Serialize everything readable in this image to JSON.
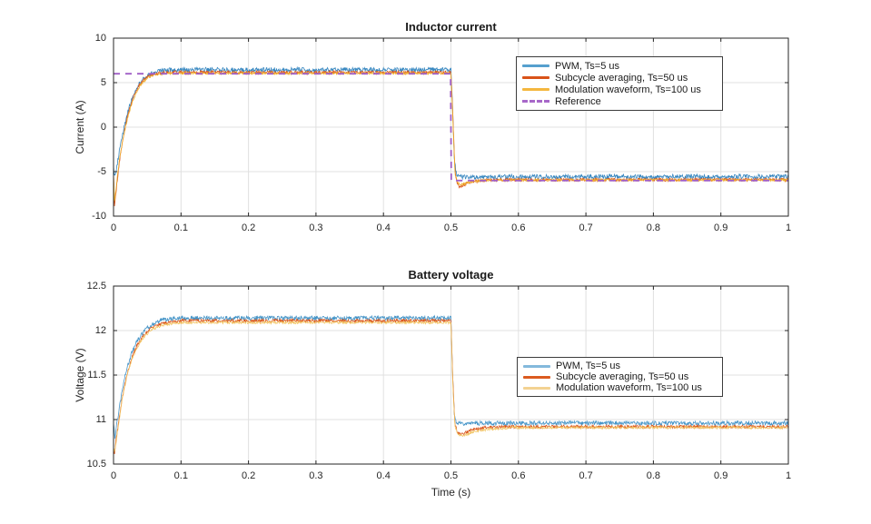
{
  "figure": {
    "background": "#ffffff",
    "axes_color": "#262626",
    "grid_color": "#e0e0e0"
  },
  "chart_data": [
    {
      "type": "line",
      "title": "Inductor current",
      "xlabel": "",
      "ylabel": "Current (A)",
      "xlim": [
        0,
        1
      ],
      "ylim": [
        -10,
        10
      ],
      "xticks": [
        0,
        0.1,
        0.2,
        0.3,
        0.4,
        0.5,
        0.6,
        0.7,
        0.8,
        0.9,
        1
      ],
      "xtick_labels": [
        "0",
        "0.1",
        "0.2",
        "0.3",
        "0.4",
        "0.5",
        "0.6",
        "0.7",
        "0.8",
        "0.9",
        "1"
      ],
      "yticks": [
        -10,
        -5,
        0,
        5,
        10
      ],
      "ytick_labels": [
        "-10",
        "-5",
        "0",
        "5",
        "10"
      ],
      "grid": true,
      "legend_position": "inside-upper-right",
      "series": [
        {
          "name": "PWM, Ts=5 us",
          "color": "#3787C0",
          "legend_color": "#56A0CE",
          "line": "solid",
          "noise": 0.26,
          "lw": 0.8,
          "points": [
            [
              0,
              -4.6
            ],
            [
              0.002,
              -5.4
            ],
            [
              0.005,
              -4.3
            ],
            [
              0.008,
              -3.0
            ],
            [
              0.011,
              -1.8
            ],
            [
              0.014,
              -0.7
            ],
            [
              0.018,
              0.7
            ],
            [
              0.022,
              1.9
            ],
            [
              0.027,
              3.1
            ],
            [
              0.032,
              4.0
            ],
            [
              0.038,
              4.85
            ],
            [
              0.045,
              5.5
            ],
            [
              0.055,
              6.05
            ],
            [
              0.068,
              6.3
            ],
            [
              0.085,
              6.42
            ],
            [
              0.11,
              6.45
            ],
            [
              0.5,
              6.45
            ],
            [
              0.502,
              3.0
            ],
            [
              0.505,
              -3.5
            ],
            [
              0.508,
              -5.3
            ],
            [
              0.512,
              -5.6
            ],
            [
              0.53,
              -5.58
            ],
            [
              1,
              -5.55
            ]
          ]
        },
        {
          "name": "Subcycle averaging, Ts=50 us",
          "color": "#D95319",
          "legend_color": "#D95319",
          "line": "solid",
          "noise": 0.18,
          "lw": 0.8,
          "points": [
            [
              0,
              -5.2
            ],
            [
              0.0015,
              -8.9
            ],
            [
              0.004,
              -7.0
            ],
            [
              0.007,
              -5.0
            ],
            [
              0.01,
              -3.2
            ],
            [
              0.013,
              -1.7
            ],
            [
              0.017,
              -0.1
            ],
            [
              0.021,
              1.3
            ],
            [
              0.026,
              2.7
            ],
            [
              0.031,
              3.7
            ],
            [
              0.037,
              4.6
            ],
            [
              0.044,
              5.3
            ],
            [
              0.054,
              5.85
            ],
            [
              0.068,
              6.1
            ],
            [
              0.09,
              6.15
            ],
            [
              0.5,
              6.15
            ],
            [
              0.503,
              1.0
            ],
            [
              0.506,
              -5.0
            ],
            [
              0.509,
              -6.3
            ],
            [
              0.513,
              -6.75
            ],
            [
              0.52,
              -6.5
            ],
            [
              0.53,
              -6.15
            ],
            [
              0.545,
              -5.98
            ],
            [
              0.57,
              -5.92
            ],
            [
              1,
              -5.9
            ]
          ]
        },
        {
          "name": "Modulation waveform, Ts=100 us",
          "color": "#EFAF2D",
          "legend_color": "#F4B73F",
          "line": "solid",
          "noise": 0.13,
          "lw": 0.8,
          "points": [
            [
              0,
              -5.1
            ],
            [
              0.0015,
              -8.4
            ],
            [
              0.004,
              -6.6
            ],
            [
              0.007,
              -4.7
            ],
            [
              0.01,
              -3.0
            ],
            [
              0.014,
              -1.4
            ],
            [
              0.018,
              0.1
            ],
            [
              0.023,
              1.6
            ],
            [
              0.028,
              2.9
            ],
            [
              0.034,
              3.9
            ],
            [
              0.041,
              4.8
            ],
            [
              0.05,
              5.5
            ],
            [
              0.062,
              5.9
            ],
            [
              0.08,
              6.03
            ],
            [
              0.11,
              6.05
            ],
            [
              0.5,
              6.05
            ],
            [
              0.503,
              0.5
            ],
            [
              0.506,
              -5.2
            ],
            [
              0.51,
              -6.3
            ],
            [
              0.516,
              -6.45
            ],
            [
              0.528,
              -6.15
            ],
            [
              0.545,
              -6.0
            ],
            [
              0.58,
              -5.95
            ],
            [
              1,
              -5.95
            ]
          ]
        },
        {
          "name": "Reference",
          "color": "#A05FC6",
          "legend_color": "#A768C9",
          "line": "dashed",
          "noise": 0,
          "lw": 1.8,
          "points": [
            [
              0,
              6
            ],
            [
              0.4995,
              6
            ],
            [
              0.5005,
              -6
            ],
            [
              1,
              -6
            ]
          ]
        }
      ]
    },
    {
      "type": "line",
      "title": "Battery voltage",
      "xlabel": "Time (s)",
      "ylabel": "Voltage (V)",
      "xlim": [
        0,
        1
      ],
      "ylim": [
        10.5,
        12.5
      ],
      "xticks": [
        0,
        0.1,
        0.2,
        0.3,
        0.4,
        0.5,
        0.6,
        0.7,
        0.8,
        0.9,
        1
      ],
      "xtick_labels": [
        "0",
        "0.1",
        "0.2",
        "0.3",
        "0.4",
        "0.5",
        "0.6",
        "0.7",
        "0.8",
        "0.9",
        "1"
      ],
      "yticks": [
        10.5,
        11,
        11.5,
        12,
        12.5
      ],
      "ytick_labels": [
        "10.5",
        "11",
        "11.5",
        "12",
        "12.5"
      ],
      "grid": true,
      "legend_position": "inside-middle-right",
      "series": [
        {
          "name": "PWM, Ts=5 us",
          "color": "#4695C8",
          "legend_color": "#83B9DC",
          "line": "solid",
          "noise": 0.024,
          "lw": 0.8,
          "points": [
            [
              0,
              10.98
            ],
            [
              0.002,
              10.8
            ],
            [
              0.005,
              10.95
            ],
            [
              0.009,
              11.15
            ],
            [
              0.014,
              11.38
            ],
            [
              0.02,
              11.58
            ],
            [
              0.027,
              11.75
            ],
            [
              0.035,
              11.88
            ],
            [
              0.045,
              11.99
            ],
            [
              0.057,
              12.07
            ],
            [
              0.072,
              12.12
            ],
            [
              0.095,
              12.14
            ],
            [
              0.5,
              12.14
            ],
            [
              0.502,
              11.6
            ],
            [
              0.505,
              11.05
            ],
            [
              0.508,
              10.96
            ],
            [
              0.515,
              10.955
            ],
            [
              0.55,
              10.96
            ],
            [
              1,
              10.96
            ]
          ]
        },
        {
          "name": "Subcycle averaging, Ts=50 us",
          "color": "#D95319",
          "legend_color": "#DB5B20",
          "line": "solid",
          "noise": 0.018,
          "lw": 0.8,
          "points": [
            [
              0,
              10.7
            ],
            [
              0.0015,
              10.62
            ],
            [
              0.004,
              10.78
            ],
            [
              0.008,
              11.0
            ],
            [
              0.013,
              11.25
            ],
            [
              0.019,
              11.48
            ],
            [
              0.026,
              11.67
            ],
            [
              0.034,
              11.82
            ],
            [
              0.044,
              11.94
            ],
            [
              0.056,
              12.03
            ],
            [
              0.072,
              12.08
            ],
            [
              0.1,
              12.11
            ],
            [
              0.5,
              12.11
            ],
            [
              0.503,
              11.4
            ],
            [
              0.506,
              10.95
            ],
            [
              0.51,
              10.85
            ],
            [
              0.517,
              10.84
            ],
            [
              0.53,
              10.88
            ],
            [
              0.55,
              10.91
            ],
            [
              0.58,
              10.92
            ],
            [
              1,
              10.92
            ]
          ]
        },
        {
          "name": "Modulation waveform, Ts=100 us",
          "color": "#F2C564",
          "legend_color": "#F3D292",
          "line": "solid",
          "noise": 0.014,
          "lw": 0.8,
          "points": [
            [
              0,
              10.68
            ],
            [
              0.0015,
              10.63
            ],
            [
              0.004,
              10.76
            ],
            [
              0.008,
              10.98
            ],
            [
              0.013,
              11.23
            ],
            [
              0.019,
              11.46
            ],
            [
              0.026,
              11.65
            ],
            [
              0.034,
              11.8
            ],
            [
              0.044,
              11.92
            ],
            [
              0.056,
              12.01
            ],
            [
              0.072,
              12.06
            ],
            [
              0.1,
              12.09
            ],
            [
              0.5,
              12.09
            ],
            [
              0.503,
              11.35
            ],
            [
              0.506,
              10.92
            ],
            [
              0.511,
              10.83
            ],
            [
              0.519,
              10.82
            ],
            [
              0.532,
              10.86
            ],
            [
              0.555,
              10.89
            ],
            [
              0.59,
              10.91
            ],
            [
              1,
              10.91
            ]
          ]
        }
      ]
    }
  ]
}
